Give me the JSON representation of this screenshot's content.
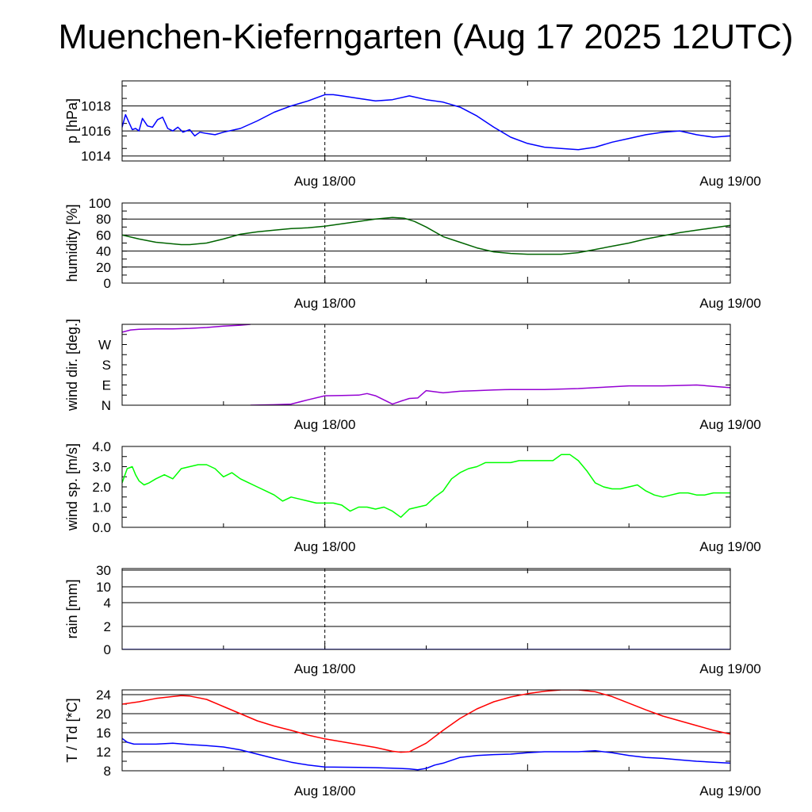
{
  "title": "Muenchen-Kieferngarten (Aug 17 2025 12UTC)",
  "chart_data": [
    {
      "type": "line",
      "id": "pressure",
      "ylabel": "p [hPa]",
      "x_range": [
        "2025-08-17 12:00",
        "2025-08-19 00:00"
      ],
      "x_ticks": [
        "Aug 18/00",
        "Aug 19/00"
      ],
      "x_tick_hours": [
        12,
        36
      ],
      "marker_hour": 12,
      "ylim": [
        1013.6,
        1020.0
      ],
      "yticks": [
        1014,
        1016,
        1018
      ],
      "grid": true,
      "series": [
        {
          "color": "#0000ff",
          "x": [
            0,
            0.2,
            0.4,
            0.6,
            0.8,
            1.0,
            1.2,
            1.5,
            1.8,
            2.1,
            2.4,
            2.7,
            3.0,
            3.3,
            3.6,
            4.0,
            4.3,
            4.6,
            5.0,
            5.5,
            6,
            7,
            8,
            9,
            10,
            11,
            12,
            12.5,
            13,
            14,
            15,
            16,
            17,
            18,
            19,
            20,
            21,
            22,
            23,
            24,
            25,
            26,
            27,
            28,
            29,
            30,
            31,
            32,
            33,
            34,
            35,
            36
          ],
          "values": [
            1016.3,
            1017.3,
            1016.7,
            1016.1,
            1016.2,
            1016.0,
            1017.0,
            1016.4,
            1016.3,
            1016.9,
            1017.1,
            1016.2,
            1016.0,
            1016.3,
            1015.9,
            1016.1,
            1015.6,
            1015.9,
            1015.8,
            1015.7,
            1015.9,
            1016.2,
            1016.8,
            1017.5,
            1018.0,
            1018.4,
            1018.9,
            1018.9,
            1018.8,
            1018.6,
            1018.4,
            1018.5,
            1018.8,
            1018.5,
            1018.3,
            1017.9,
            1017.2,
            1016.3,
            1015.5,
            1015.0,
            1014.7,
            1014.6,
            1014.5,
            1014.7,
            1015.1,
            1015.4,
            1015.7,
            1015.9,
            1016.0,
            1015.7,
            1015.5,
            1015.6
          ]
        }
      ]
    },
    {
      "type": "line",
      "id": "humidity",
      "ylabel": "humidity [%]",
      "x_range": [
        "2025-08-17 12:00",
        "2025-08-19 00:00"
      ],
      "x_ticks": [
        "Aug 18/00",
        "Aug 19/00"
      ],
      "x_tick_hours": [
        12,
        36
      ],
      "marker_hour": 12,
      "ylim": [
        0,
        100
      ],
      "yticks": [
        0,
        20,
        40,
        60,
        80,
        100
      ],
      "grid": true,
      "series": [
        {
          "color": "#006400",
          "x": [
            0,
            1,
            2,
            3,
            3.5,
            4,
            5,
            6,
            7,
            8,
            9,
            10,
            11,
            12,
            13,
            14,
            15,
            16,
            16.7,
            17.3,
            18,
            19,
            20,
            21,
            22,
            23,
            24,
            25,
            26,
            27,
            28,
            29,
            30,
            31,
            32,
            33,
            34,
            35,
            36
          ],
          "values": [
            60,
            55,
            51,
            49,
            48,
            48,
            50,
            55,
            61,
            64,
            66,
            68,
            69,
            71,
            74,
            77,
            80,
            82,
            81,
            77,
            70,
            58,
            51,
            44,
            39,
            37,
            36,
            36,
            36,
            38,
            42,
            46,
            50,
            55,
            59,
            63,
            66,
            69,
            72
          ]
        }
      ]
    },
    {
      "type": "line",
      "id": "wind-direction",
      "ylabel": "wind dir. [deg.]",
      "x_range": [
        "2025-08-17 12:00",
        "2025-08-19 00:00"
      ],
      "x_ticks": [
        "Aug 18/00",
        "Aug 19/00"
      ],
      "x_tick_hours": [
        12,
        36
      ],
      "marker_hour": 12,
      "ylim": [
        0,
        360
      ],
      "yticks": [
        0,
        90,
        180,
        270
      ],
      "ytick_labels": [
        "N",
        "E",
        "S",
        "W"
      ],
      "grid": false,
      "series": [
        {
          "color": "#9400d3",
          "x": [
            0,
            0.5,
            1,
            2,
            3,
            4,
            5,
            6,
            7,
            7.6
          ],
          "values": [
            325,
            335,
            338,
            340,
            340,
            342,
            346,
            352,
            356,
            360
          ]
        },
        {
          "color": "#9400d3",
          "x": [
            7.6,
            9,
            10,
            11,
            12,
            13,
            14,
            14.5,
            15,
            16,
            16.5,
            17,
            17.5,
            18,
            19,
            20,
            21,
            22,
            23,
            24,
            25,
            26,
            27,
            28,
            29,
            30,
            31,
            32,
            33,
            34,
            35,
            36
          ],
          "values": [
            0,
            2,
            5,
            24,
            42,
            43,
            45,
            52,
            42,
            5,
            18,
            30,
            32,
            65,
            55,
            62,
            65,
            68,
            70,
            70,
            70,
            72,
            74,
            78,
            82,
            86,
            86,
            86,
            88,
            90,
            84,
            78
          ]
        }
      ]
    },
    {
      "type": "line",
      "id": "wind-speed",
      "ylabel": "wind sp. [m/s]",
      "x_range": [
        "2025-08-17 12:00",
        "2025-08-19 00:00"
      ],
      "x_ticks": [
        "Aug 18/00",
        "Aug 19/00"
      ],
      "x_tick_hours": [
        12,
        36
      ],
      "marker_hour": 12,
      "ylim": [
        0,
        4.0
      ],
      "yticks": [
        0,
        1.0,
        2.0,
        3.0,
        4.0
      ],
      "ytick_labels": [
        "0.0",
        "1.0",
        "2.0",
        "3.0",
        "4.0"
      ],
      "grid": false,
      "series": [
        {
          "color": "#00ff00",
          "x": [
            0,
            0.3,
            0.6,
            0.8,
            1.0,
            1.3,
            1.6,
            2,
            2.5,
            3,
            3.5,
            4,
            4.5,
            5,
            5.5,
            6,
            6.5,
            7,
            7.5,
            8,
            8.5,
            9,
            9.5,
            10,
            10.5,
            11,
            11.5,
            12,
            12.5,
            13,
            13.5,
            14,
            14.5,
            15,
            15.5,
            16,
            16.5,
            17,
            17.5,
            18,
            18.5,
            19,
            19.5,
            20,
            20.5,
            21,
            21.5,
            22,
            22.5,
            23,
            23.5,
            24,
            24.5,
            25,
            25.5,
            26,
            26.5,
            27,
            27.5,
            28,
            28.5,
            29,
            29.5,
            30,
            30.5,
            31,
            31.5,
            32,
            32.5,
            33,
            33.5,
            34,
            34.5,
            35,
            35.5,
            36
          ],
          "values": [
            2.2,
            2.9,
            3.0,
            2.6,
            2.3,
            2.1,
            2.2,
            2.4,
            2.6,
            2.4,
            2.9,
            3.0,
            3.1,
            3.1,
            2.9,
            2.5,
            2.7,
            2.4,
            2.2,
            2.0,
            1.8,
            1.6,
            1.3,
            1.5,
            1.4,
            1.3,
            1.2,
            1.2,
            1.2,
            1.1,
            0.8,
            1.0,
            1.0,
            0.9,
            1.0,
            0.8,
            0.5,
            0.9,
            1.0,
            1.1,
            1.5,
            1.8,
            2.4,
            2.7,
            2.9,
            3.0,
            3.2,
            3.2,
            3.2,
            3.2,
            3.3,
            3.3,
            3.3,
            3.3,
            3.3,
            3.6,
            3.6,
            3.3,
            2.8,
            2.2,
            2.0,
            1.9,
            1.9,
            2.0,
            2.1,
            1.8,
            1.6,
            1.5,
            1.6,
            1.7,
            1.7,
            1.6,
            1.6,
            1.7,
            1.7,
            1.7
          ]
        }
      ]
    },
    {
      "type": "line",
      "id": "rain",
      "ylabel": "rain [mm]",
      "x_range": [
        "2025-08-17 12:00",
        "2025-08-19 00:00"
      ],
      "x_ticks": [
        "Aug 18/00",
        "Aug 19/00"
      ],
      "x_tick_hours": [
        12,
        36
      ],
      "marker_hour": 12,
      "scale": "nonlinear",
      "yticks": [
        0,
        2,
        4,
        10,
        30
      ],
      "grid": true,
      "series": [
        {
          "color": "#0000ff",
          "x": [
            0,
            36
          ],
          "values": [
            0,
            0
          ]
        }
      ]
    },
    {
      "type": "line",
      "id": "temperature-dewpoint",
      "ylabel": "T / Td [*C]",
      "x_range": [
        "2025-08-17 12:00",
        "2025-08-19 00:00"
      ],
      "x_ticks": [
        "Aug 18/00",
        "Aug 19/00"
      ],
      "x_tick_hours": [
        12,
        36
      ],
      "marker_hour": 12,
      "ylim": [
        8,
        25
      ],
      "yticks": [
        8,
        12,
        16,
        20,
        24
      ],
      "grid": true,
      "series": [
        {
          "color": "#ff0000",
          "x": [
            0,
            1,
            2,
            3,
            3.5,
            4,
            5,
            6,
            7,
            8,
            9,
            10,
            11,
            12,
            13,
            14,
            15,
            16,
            16.5,
            17,
            18,
            19,
            20,
            21,
            22,
            23,
            24,
            25,
            26,
            27,
            28,
            29,
            30,
            31,
            32,
            33,
            34,
            35,
            36
          ],
          "values": [
            22.0,
            22.5,
            23.2,
            23.6,
            23.8,
            23.7,
            23.0,
            21.5,
            20.0,
            18.5,
            17.4,
            16.5,
            15.5,
            14.7,
            14.1,
            13.5,
            12.9,
            12.1,
            11.9,
            12.0,
            13.8,
            16.5,
            19.0,
            21.0,
            22.5,
            23.5,
            24.2,
            24.7,
            25.0,
            25.0,
            24.6,
            23.6,
            22.2,
            20.8,
            19.5,
            18.5,
            17.5,
            16.5,
            15.7
          ]
        },
        {
          "color": "#0000ff",
          "x": [
            0,
            0.3,
            0.7,
            1,
            2,
            3,
            4,
            5,
            6,
            7,
            8,
            9,
            10,
            11,
            12,
            13,
            14,
            15,
            16,
            17,
            17.5,
            18,
            18.5,
            19,
            20,
            21,
            22,
            23,
            24,
            25,
            26,
            27,
            28,
            29,
            30,
            31,
            32,
            33,
            34,
            35,
            36
          ],
          "values": [
            14.8,
            14.0,
            13.6,
            13.6,
            13.6,
            13.8,
            13.5,
            13.3,
            13.0,
            12.4,
            11.5,
            10.6,
            9.8,
            9.2,
            8.8,
            8.75,
            8.7,
            8.65,
            8.55,
            8.4,
            8.2,
            8.5,
            9.2,
            9.6,
            10.8,
            11.2,
            11.4,
            11.5,
            11.8,
            12.0,
            12.0,
            12.0,
            12.2,
            11.8,
            11.2,
            10.8,
            10.6,
            10.3,
            10.0,
            9.8,
            9.6
          ]
        }
      ]
    }
  ]
}
